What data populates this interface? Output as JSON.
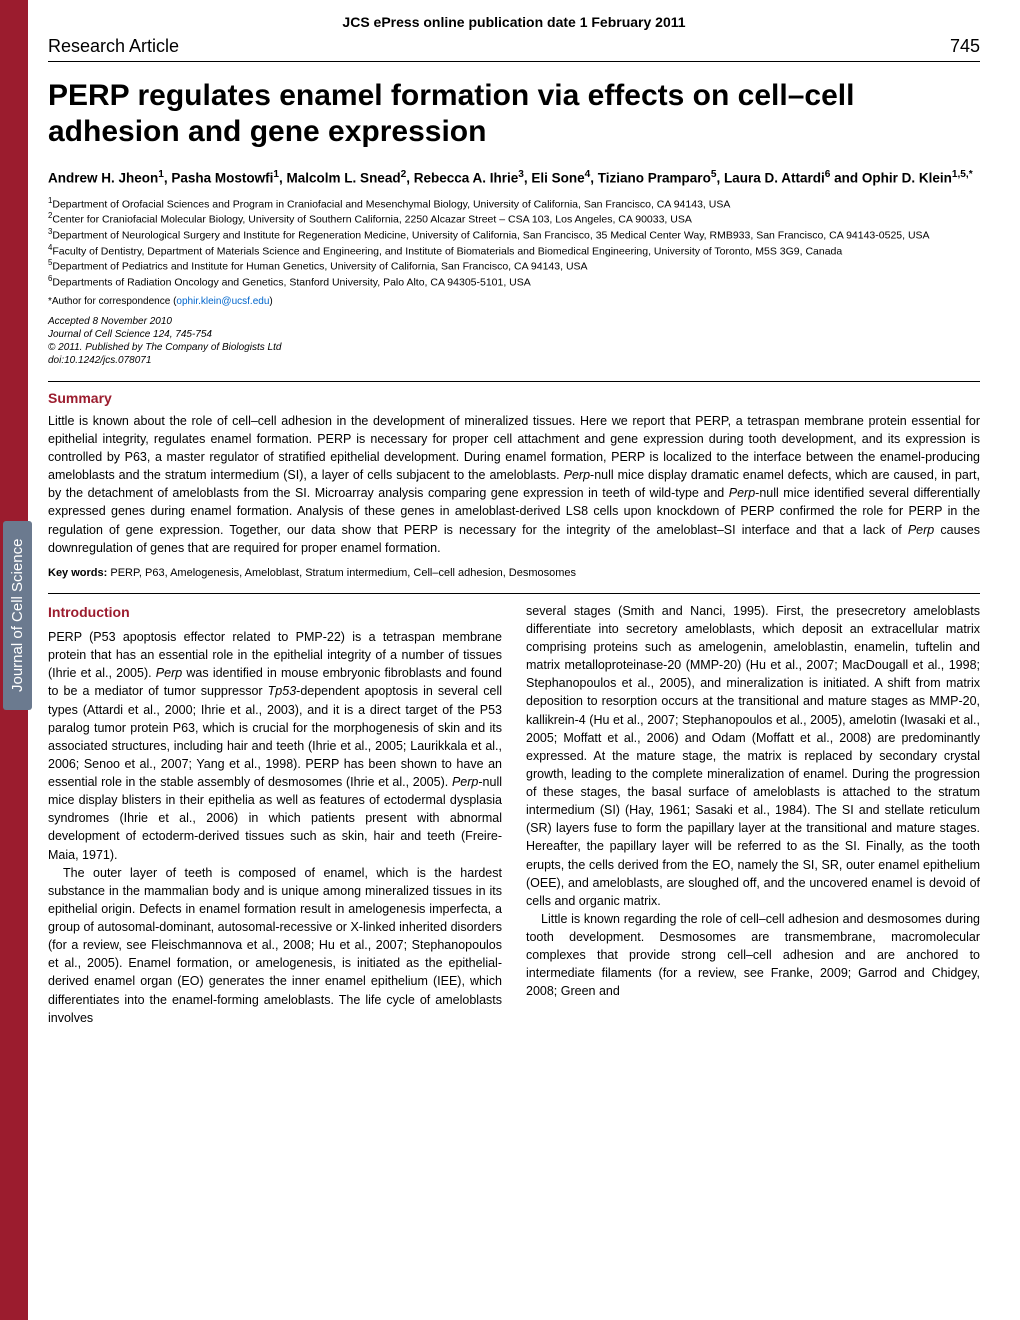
{
  "epress": "JCS ePress online publication date 1 February 2011",
  "header": {
    "article_type": "Research Article",
    "page_num": "745"
  },
  "title": "PERP regulates enamel formation via effects on cell–cell adhesion and gene expression",
  "authors_html": "Andrew H. Jheon<sup>1</sup>, Pasha Mostowfi<sup>1</sup>, Malcolm L. Snead<sup>2</sup>, Rebecca A. Ihrie<sup>3</sup>, Eli Sone<sup>4</sup>, Tiziano Pramparo<sup>5</sup>, Laura D. Attardi<sup>6</sup> and Ophir D. Klein<sup>1,5,*</sup>",
  "affiliations": [
    "<sup>1</sup>Department of Orofacial Sciences and Program in Craniofacial and Mesenchymal Biology, University of California, San Francisco, CA 94143, USA",
    "<sup>2</sup>Center for Craniofacial Molecular Biology, University of Southern California, 2250 Alcazar Street – CSA 103, Los Angeles, CA 90033, USA",
    "<sup>3</sup>Department of Neurological Surgery and Institute for Regeneration Medicine, University of California, San Francisco, 35 Medical Center Way, RMB933, San Francisco, CA 94143-0525, USA",
    "<sup>4</sup>Faculty of Dentistry, Department of Materials Science and Engineering, and Institute of Biomaterials and Biomedical Engineering, University of Toronto, M5S 3G9, Canada",
    "<sup>5</sup>Department of Pediatrics and Institute for Human Genetics, University of California, San Francisco, CA 94143, USA",
    "<sup>6</sup>Departments of Radiation Oncology and Genetics, Stanford University, Palo Alto, CA 94305-5101, USA"
  ],
  "correspondence_prefix": "*Author for correspondence (",
  "correspondence_email": "ophir.klein@ucsf.edu",
  "correspondence_suffix": ")",
  "accepted": [
    "Accepted 8 November 2010",
    "Journal of Cell Science 124, 745-754",
    "© 2011. Published by The Company of Biologists Ltd",
    "doi:10.1242/jcs.078071"
  ],
  "summary_head": "Summary",
  "summary_html": "Little is known about the role of cell–cell adhesion in the development of mineralized tissues. Here we report that PERP, a tetraspan membrane protein essential for epithelial integrity, regulates enamel formation. PERP is necessary for proper cell attachment and gene expression during tooth development, and its expression is controlled by P63, a master regulator of stratified epithelial development. During enamel formation, PERP is localized to the interface between the enamel-producing ameloblasts and the stratum intermedium (SI), a layer of cells subjacent to the ameloblasts. <em>Perp</em>-null mice display dramatic enamel defects, which are caused, in part, by the detachment of ameloblasts from the SI. Microarray analysis comparing gene expression in teeth of wild-type and <em>Perp</em>-null mice identified several differentially expressed genes during enamel formation. Analysis of these genes in ameloblast-derived LS8 cells upon knockdown of PERP confirmed the role for PERP in the regulation of gene expression. Together, our data show that PERP is necessary for the integrity of the ameloblast–SI interface and that a lack of <em>Perp</em> causes downregulation of genes that are required for proper enamel formation.",
  "keywords_label": "Key words:",
  "keywords": "PERP, P63, Amelogenesis, Ameloblast, Stratum intermedium, Cell–cell adhesion, Desmosomes",
  "intro_head": "Introduction",
  "col1": [
    "PERP (P53 apoptosis effector related to PMP-22) is a tetraspan membrane protein that has an essential role in the epithelial integrity of a number of tissues (Ihrie et al., 2005). <em>Perp</em> was identified in mouse embryonic fibroblasts and found to be a mediator of tumor suppressor <em>Tp53</em>-dependent apoptosis in several cell types (Attardi et al., 2000; Ihrie et al., 2003), and it is a direct target of the P53 paralog tumor protein P63, which is crucial for the morphogenesis of skin and its associated structures, including hair and teeth (Ihrie et al., 2005; Laurikkala et al., 2006; Senoo et al., 2007; Yang et al., 1998). PERP has been shown to have an essential role in the stable assembly of desmosomes (Ihrie et al., 2005). <em>Perp</em>-null mice display blisters in their epithelia as well as features of ectodermal dysplasia syndromes (Ihrie et al., 2006) in which patients present with abnormal development of ectoderm-derived tissues such as skin, hair and teeth (Freire-Maia, 1971).",
    "The outer layer of teeth is composed of enamel, which is the hardest substance in the mammalian body and is unique among mineralized tissues in its epithelial origin. Defects in enamel formation result in amelogenesis imperfecta, a group of autosomal-dominant, autosomal-recessive or X-linked inherited disorders (for a review, see Fleischmannova et al., 2008; Hu et al., 2007; Stephanopoulos et al., 2005). Enamel formation, or amelogenesis, is initiated as the epithelial-derived enamel organ (EO) generates the inner enamel epithelium (IEE), which differentiates into the enamel-forming ameloblasts. The life cycle of ameloblasts involves"
  ],
  "col2": [
    "several stages (Smith and Nanci, 1995). First, the presecretory ameloblasts differentiate into secretory ameloblasts, which deposit an extracellular matrix comprising proteins such as amelogenin, ameloblastin, enamelin, tuftelin and matrix metalloproteinase-20 (MMP-20) (Hu et al., 2007; MacDougall et al., 1998; Stephanopoulos et al., 2005), and mineralization is initiated. A shift from matrix deposition to resorption occurs at the transitional and mature stages as MMP-20, kallikrein-4 (Hu et al., 2007; Stephanopoulos et al., 2005), amelotin (Iwasaki et al., 2005; Moffatt et al., 2006) and Odam (Moffatt et al., 2008) are predominantly expressed. At the mature stage, the matrix is replaced by secondary crystal growth, leading to the complete mineralization of enamel. During the progression of these stages, the basal surface of ameloblasts is attached to the stratum intermedium (SI) (Hay, 1961; Sasaki et al., 1984). The SI and stellate reticulum (SR) layers fuse to form the papillary layer at the transitional and mature stages. Hereafter, the papillary layer will be referred to as the SI. Finally, as the tooth erupts, the cells derived from the EO, namely the SI, SR, outer enamel epithelium (OEE), and ameloblasts, are sloughed off, and the uncovered enamel is devoid of cells and organic matrix.",
    "Little is known regarding the role of cell–cell adhesion and desmosomes during tooth development. Desmosomes are transmembrane, macromolecular complexes that provide strong cell–cell adhesion and are anchored to intermediate filaments (for a review, see Franke, 2009; Garrod and Chidgey, 2008; Green and"
  ],
  "sidebar_label": "Journal of Cell Science",
  "colors": {
    "accent": "#9b1c2e",
    "sidebar_badge": "#6b7a8f",
    "link": "#0066cc"
  }
}
